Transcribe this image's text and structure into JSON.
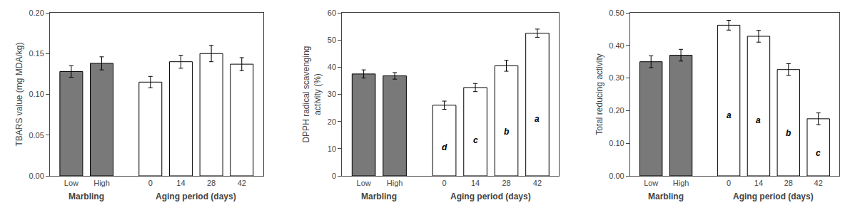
{
  "chart_data": [
    {
      "type": "bar",
      "ylabel": "TBARS value (mg MDA/kg)",
      "categories": [
        "Low",
        "High",
        "0",
        "14",
        "28",
        "42"
      ],
      "values": [
        0.128,
        0.138,
        0.115,
        0.14,
        0.15,
        0.137
      ],
      "errors": [
        0.007,
        0.008,
        0.007,
        0.008,
        0.01,
        0.008
      ],
      "colors": [
        "#797979",
        "#797979",
        "#ffffff",
        "#ffffff",
        "#ffffff",
        "#ffffff"
      ],
      "ylim": [
        0.0,
        0.2
      ],
      "yticks": [
        {
          "value": 0.0,
          "label": "0.00"
        },
        0.05,
        {
          "value": 0.1,
          "label": "0.10"
        },
        0.15,
        {
          "value": 0.2,
          "label": "0.20"
        }
      ],
      "grid": false,
      "annotations": [
        {
          "text": "Marbling",
          "categories": [
            "Low",
            "High"
          ]
        },
        {
          "text": "Aging period (days)",
          "categories": [
            "0",
            "14",
            "28",
            "42"
          ]
        }
      ]
    },
    {
      "type": "bar",
      "ylabel": "DPPH radical scavenging\nactivity (%)",
      "categories": [
        "Low",
        "High",
        "0",
        "14",
        "28",
        "42"
      ],
      "values": [
        37.5,
        36.8,
        26.0,
        32.5,
        40.5,
        52.5
      ],
      "errors": [
        1.5,
        1.2,
        1.5,
        1.5,
        2.0,
        1.5
      ],
      "colors": [
        "#797979",
        "#797979",
        "#ffffff",
        "#ffffff",
        "#ffffff",
        "#ffffff"
      ],
      "ylim": [
        0,
        60
      ],
      "yticks": [
        0,
        10,
        20,
        30,
        40,
        50,
        60
      ],
      "grid": false,
      "annotations": [
        {
          "text": "Marbling",
          "categories": [
            "Low",
            "High"
          ]
        },
        {
          "text": "Aging period (days)",
          "categories": [
            "0",
            "14",
            "28",
            "42"
          ]
        },
        {
          "text": "d",
          "category": "0"
        },
        {
          "text": "c",
          "category": "14"
        },
        {
          "text": "b",
          "category": "28"
        },
        {
          "text": "a",
          "category": "42"
        }
      ]
    },
    {
      "type": "bar",
      "ylabel": "Total reducing activity",
      "categories": [
        "Low",
        "High",
        "0",
        "14",
        "28",
        "42"
      ],
      "values": [
        0.35,
        0.37,
        0.462,
        0.428,
        0.326,
        0.175
      ],
      "errors": [
        0.018,
        0.018,
        0.015,
        0.018,
        0.018,
        0.018
      ],
      "colors": [
        "#797979",
        "#797979",
        "#ffffff",
        "#ffffff",
        "#ffffff",
        "#ffffff"
      ],
      "ylim": [
        0.0,
        0.5
      ],
      "yticks": [
        {
          "value": 0.0,
          "label": "0.00"
        },
        {
          "value": 0.1,
          "label": "0.10"
        },
        {
          "value": 0.2,
          "label": "0.20"
        },
        {
          "value": 0.3,
          "label": "0.30"
        },
        {
          "value": 0.4,
          "label": "0.40"
        },
        {
          "value": 0.5,
          "label": "0.50"
        }
      ],
      "grid": false,
      "annotations": [
        {
          "text": "Marbling",
          "categories": [
            "Low",
            "High"
          ]
        },
        {
          "text": "Aging period (days)",
          "categories": [
            "0",
            "14",
            "28",
            "42"
          ]
        },
        {
          "text": "a",
          "category": "0"
        },
        {
          "text": "a",
          "category": "14"
        },
        {
          "text": "b",
          "category": "28"
        },
        {
          "text": "c",
          "category": "42"
        }
      ]
    }
  ]
}
